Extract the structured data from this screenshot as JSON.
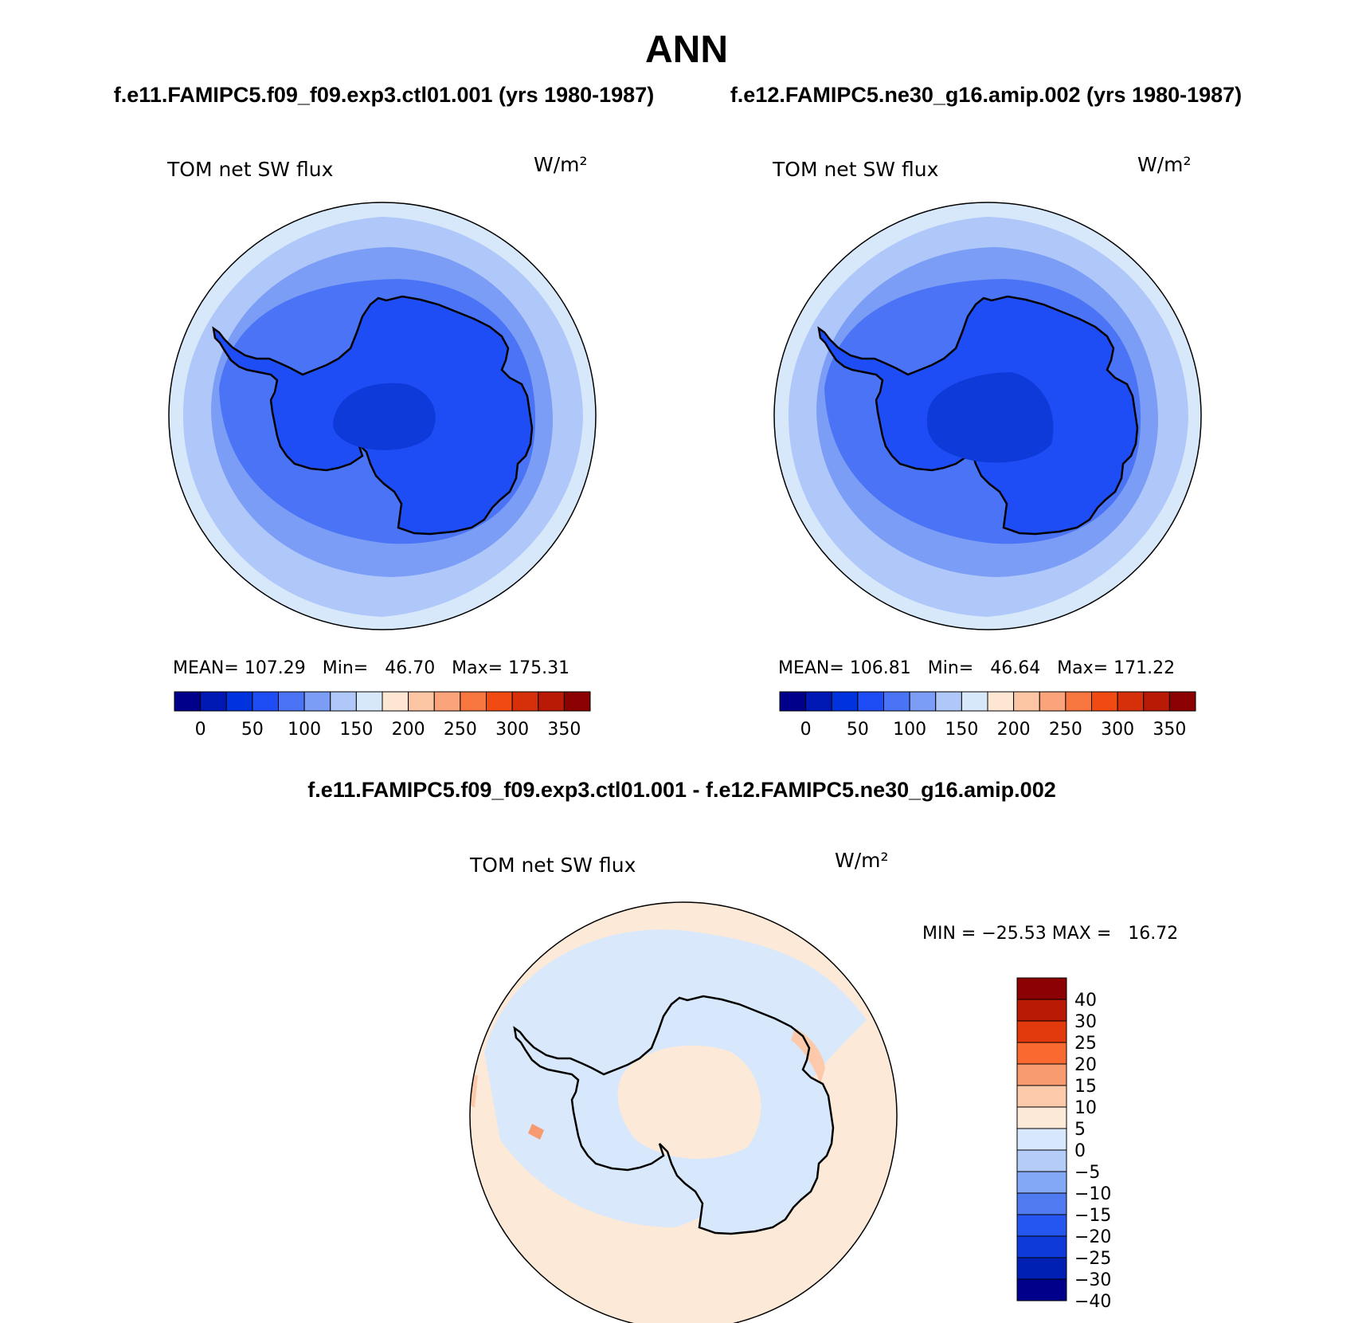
{
  "page_title": "ANN",
  "panels": [
    {
      "id": "left",
      "case_title": "f.e11.FAMIPC5.f09_f09.exp3.ctl01.001 (yrs 1980-1987)",
      "variable": "TOM net SW flux",
      "units": "W/m²",
      "stats": "MEAN= 107.29   Min=   46.70   Max= 175.31",
      "colorbar_labels": [
        "0",
        "50",
        "100",
        "150",
        "200",
        "250",
        "300",
        "350"
      ]
    },
    {
      "id": "right",
      "case_title": "f.e12.FAMIPC5.ne30_g16.amip.002 (yrs 1980-1987)",
      "variable": "TOM net SW flux",
      "units": "W/m²",
      "stats": "MEAN= 106.81   Min=   46.64   Max= 171.22",
      "colorbar_labels": [
        "0",
        "50",
        "100",
        "150",
        "200",
        "250",
        "300",
        "350"
      ]
    }
  ],
  "difference": {
    "title": "f.e11.FAMIPC5.f09_f09.exp3.ctl01.001 - f.e12.FAMIPC5.ne30_g16.amip.002",
    "variable": "TOM net SW flux",
    "units": "W/m²",
    "minmax": "MIN = −25.53 MAX =   16.72",
    "colorbar_labels": [
      "40",
      "30",
      "25",
      "20",
      "15",
      "10",
      "5",
      "0",
      "−5",
      "−10",
      "−15",
      "−20",
      "−25",
      "−30",
      "−40"
    ]
  },
  "colors": {
    "abs_scale": [
      "#00008b",
      "#0019b4",
      "#0033dd",
      "#1f4df5",
      "#4a74f5",
      "#7b9df5",
      "#b0c8f9",
      "#d8e8fb",
      "#fde7d3",
      "#fcc6a5",
      "#fba37a",
      "#f87640",
      "#f24a13",
      "#d6300a",
      "#b81a05",
      "#8b0000"
    ],
    "diff_scale": [
      "#8b0000",
      "#b81a05",
      "#e23a0c",
      "#f86a30",
      "#f89a6f",
      "#fcc9aa",
      "#fde9d8",
      "#d7e8fc",
      "#b5ccf9",
      "#83a8f5",
      "#4f7af0",
      "#2557f0",
      "#0d3ad8",
      "#0020b4",
      "#00008b"
    ]
  }
}
